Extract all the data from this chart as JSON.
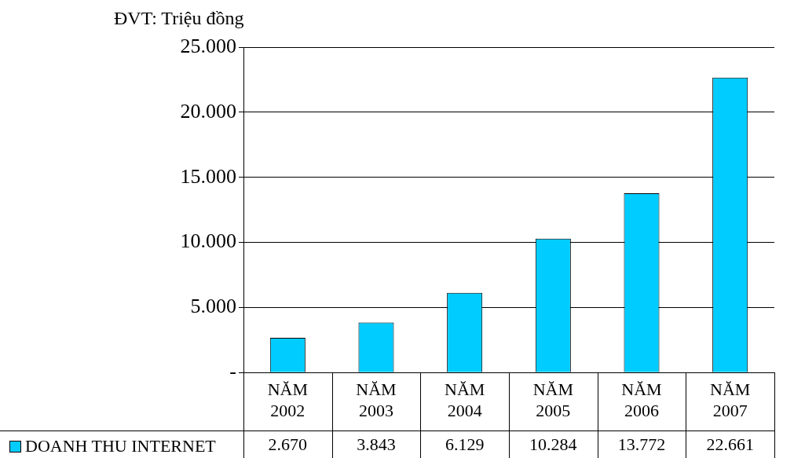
{
  "chart_data": {
    "type": "bar",
    "annotations": [
      "ĐVT: Triệu đồng"
    ],
    "categories": [
      "NĂM 2002",
      "NĂM 2003",
      "NĂM 2004",
      "NĂM 2005",
      "NĂM 2006",
      "NĂM 2007"
    ],
    "series": [
      {
        "name": "DOANH THU INTERNET",
        "color": "#00ccff",
        "values": [
          2670,
          3843,
          6129,
          10284,
          13772,
          22661
        ],
        "value_labels": [
          "2.670",
          "3.843",
          "6.129",
          "10.284",
          "13.772",
          "22.661"
        ]
      }
    ],
    "ylim": [
      0,
      25000
    ],
    "yticks": [
      {
        "value": 0,
        "label": "-"
      },
      {
        "value": 5000,
        "label": "5.000"
      },
      {
        "value": 10000,
        "label": "10.000"
      },
      {
        "value": 15000,
        "label": "15.000"
      },
      {
        "value": 20000,
        "label": "20.000"
      },
      {
        "value": 25000,
        "label": "25.000"
      }
    ],
    "grid": "y",
    "legend": "bottom left"
  }
}
